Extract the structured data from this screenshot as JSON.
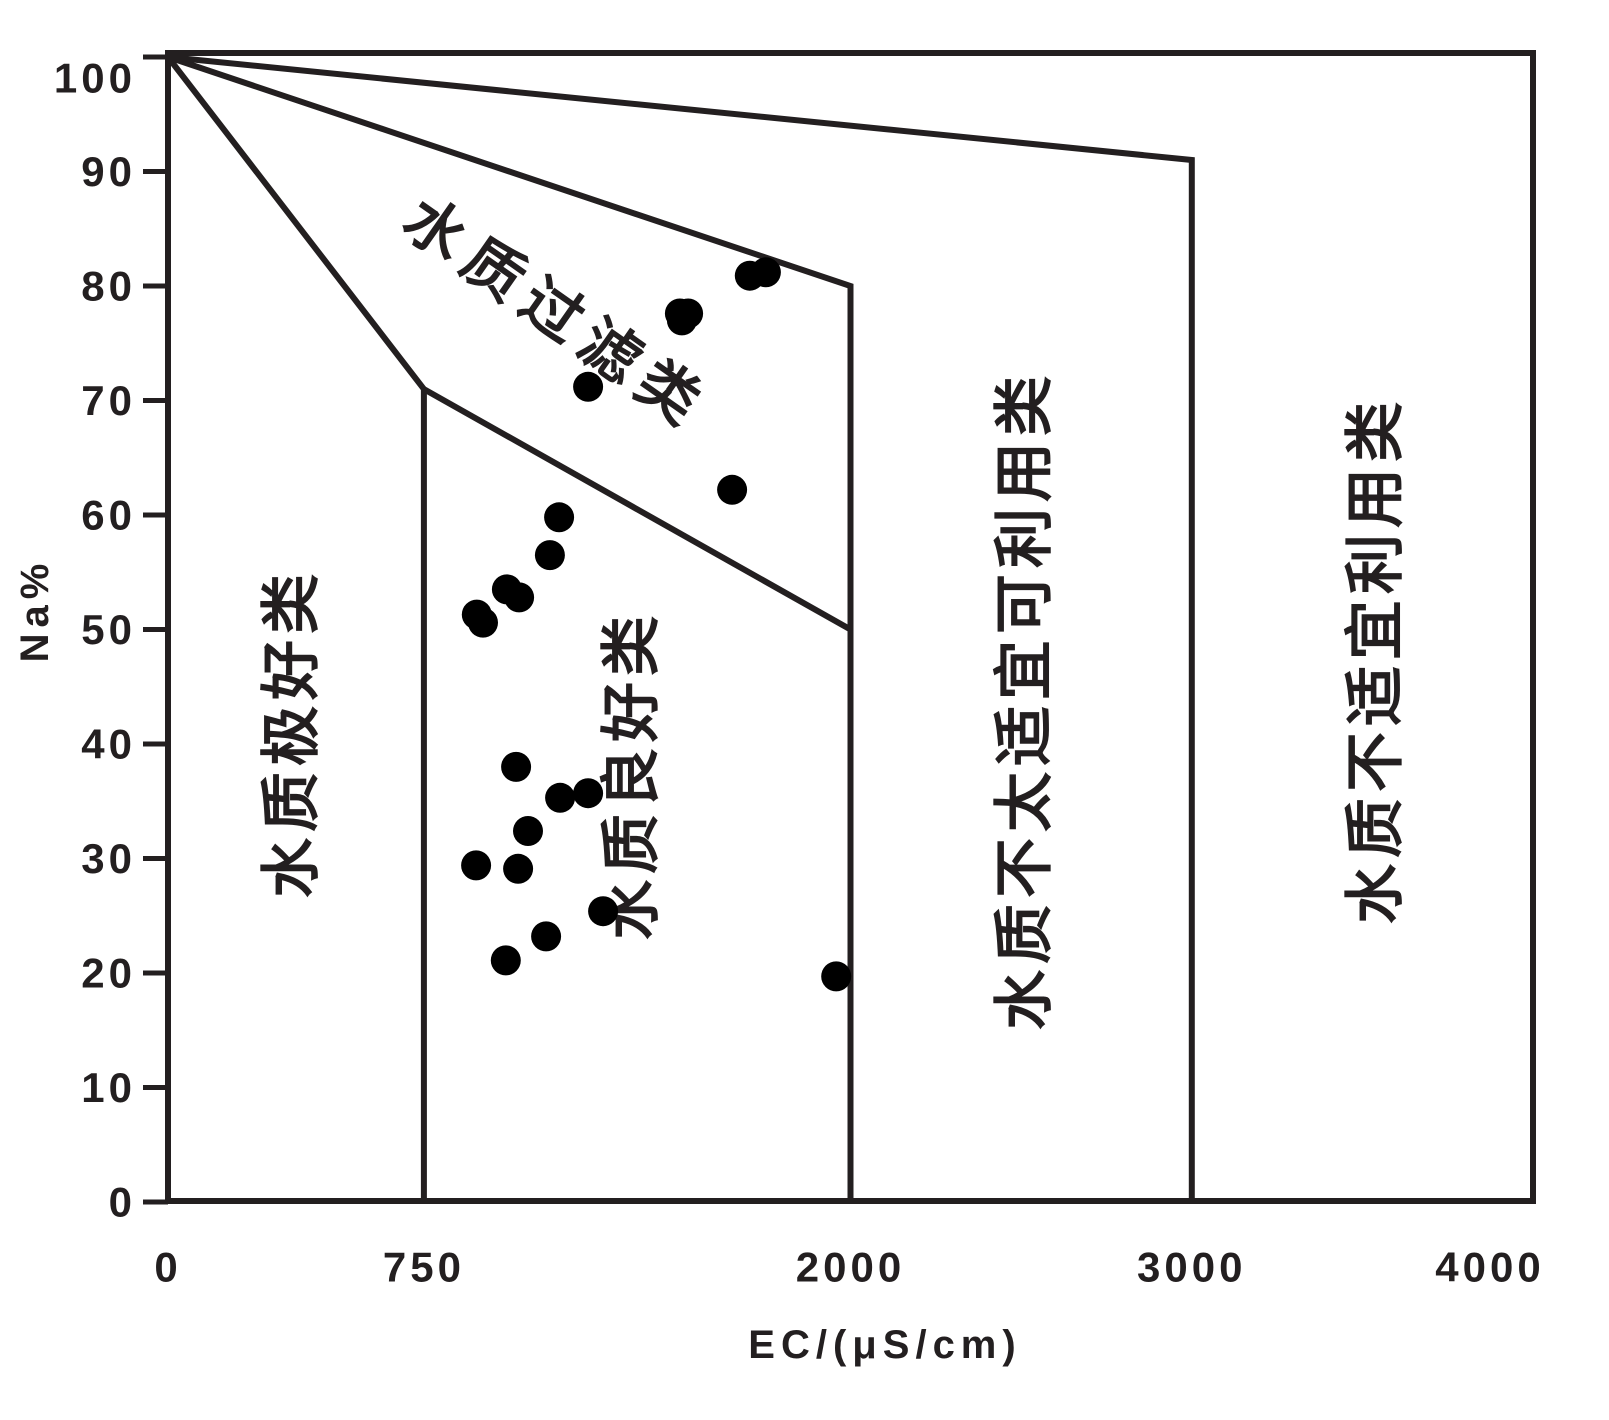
{
  "chart_data": {
    "type": "scatter",
    "title": "",
    "xlabel": "EC/(μS/cm)",
    "ylabel": "Na%",
    "xlim": [
      0,
      4000
    ],
    "ylim": [
      0,
      100
    ],
    "x_ticks": [
      0,
      750,
      2000,
      3000,
      4000
    ],
    "y_ticks": [
      0,
      10,
      20,
      30,
      40,
      50,
      60,
      70,
      80,
      90,
      100
    ],
    "grid": false,
    "points": [
      {
        "x": 1752,
        "y": 81.2
      },
      {
        "x": 1705,
        "y": 80.9
      },
      {
        "x": 1500,
        "y": 77.6
      },
      {
        "x": 1524,
        "y": 77.6
      },
      {
        "x": 1506,
        "y": 77.0
      },
      {
        "x": 1231,
        "y": 71.2
      },
      {
        "x": 1653,
        "y": 62.2
      },
      {
        "x": 1146,
        "y": 59.8
      },
      {
        "x": 1119,
        "y": 56.5
      },
      {
        "x": 993,
        "y": 53.5
      },
      {
        "x": 1029,
        "y": 52.8
      },
      {
        "x": 905,
        "y": 51.3
      },
      {
        "x": 923,
        "y": 50.6
      },
      {
        "x": 1020,
        "y": 38.0
      },
      {
        "x": 1149,
        "y": 35.3
      },
      {
        "x": 1231,
        "y": 35.7
      },
      {
        "x": 1055,
        "y": 32.4
      },
      {
        "x": 903,
        "y": 29.4
      },
      {
        "x": 1026,
        "y": 29.1
      },
      {
        "x": 1275,
        "y": 25.4
      },
      {
        "x": 1108,
        "y": 23.2
      },
      {
        "x": 990,
        "y": 21.1
      },
      {
        "x": 1958,
        "y": 19.7
      }
    ],
    "boundaries": [
      [
        [
          0,
          100
        ],
        [
          750,
          71
        ],
        [
          750,
          0
        ]
      ],
      [
        [
          750,
          71
        ],
        [
          2000,
          50
        ]
      ],
      [
        [
          0,
          100
        ],
        [
          2000,
          80
        ],
        [
          2000,
          0
        ]
      ],
      [
        [
          0,
          100
        ],
        [
          3000,
          91
        ],
        [
          3000,
          0
        ]
      ]
    ],
    "regions": [
      {
        "label": "水质极好类"
      },
      {
        "label": "水质良好类"
      },
      {
        "label": "水质过滤类"
      },
      {
        "label": "水质不太适宜可利用类"
      },
      {
        "label": "水质不适宜利用类"
      }
    ]
  },
  "colors": {
    "ink": "#231f20",
    "point": "#000000",
    "background": "#ffffff"
  }
}
